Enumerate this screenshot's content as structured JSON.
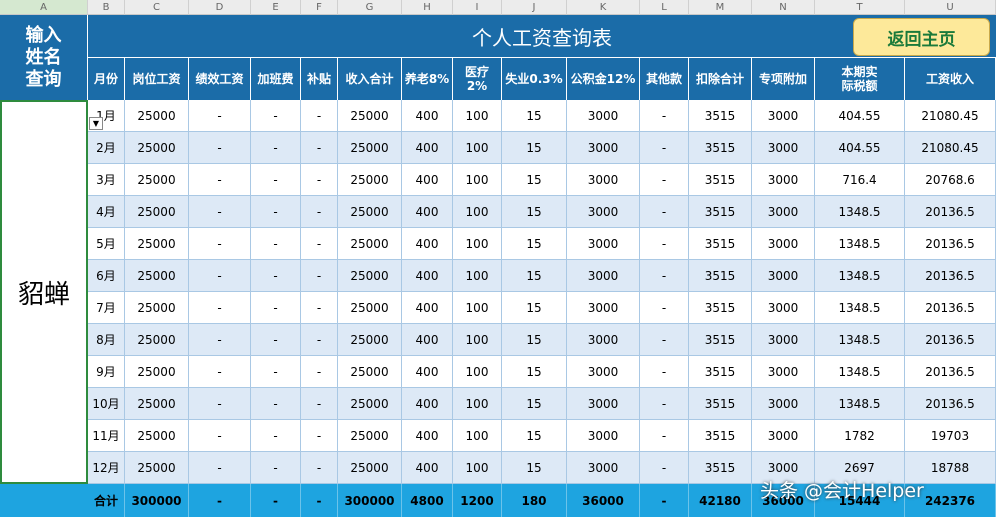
{
  "column_letters": [
    "A",
    "B",
    "C",
    "D",
    "E",
    "F",
    "G",
    "H",
    "I",
    "J",
    "K",
    "L",
    "M",
    "N",
    "T",
    "U"
  ],
  "name_label": [
    "输入",
    "姓名",
    "查询"
  ],
  "name": "貂蝉",
  "title": "个人工资查询表",
  "button": "返回主页",
  "table": {
    "headers": [
      "月份",
      "岗位工资",
      "绩效工资",
      "加班费",
      "补贴",
      "收入合计",
      "养老8%",
      "医疗2%",
      "失业0.3%",
      "公积金12%",
      "其他款",
      "扣除合计",
      "专项附加",
      "本期实际税额",
      "工资收入"
    ],
    "rows": [
      [
        "1月",
        "25000",
        "-",
        "-",
        "-",
        "25000",
        "400",
        "100",
        "15",
        "3000",
        "-",
        "3515",
        "3000",
        "404.55",
        "21080.45"
      ],
      [
        "2月",
        "25000",
        "-",
        "-",
        "-",
        "25000",
        "400",
        "100",
        "15",
        "3000",
        "-",
        "3515",
        "3000",
        "404.55",
        "21080.45"
      ],
      [
        "3月",
        "25000",
        "-",
        "-",
        "-",
        "25000",
        "400",
        "100",
        "15",
        "3000",
        "-",
        "3515",
        "3000",
        "716.4",
        "20768.6"
      ],
      [
        "4月",
        "25000",
        "-",
        "-",
        "-",
        "25000",
        "400",
        "100",
        "15",
        "3000",
        "-",
        "3515",
        "3000",
        "1348.5",
        "20136.5"
      ],
      [
        "5月",
        "25000",
        "-",
        "-",
        "-",
        "25000",
        "400",
        "100",
        "15",
        "3000",
        "-",
        "3515",
        "3000",
        "1348.5",
        "20136.5"
      ],
      [
        "6月",
        "25000",
        "-",
        "-",
        "-",
        "25000",
        "400",
        "100",
        "15",
        "3000",
        "-",
        "3515",
        "3000",
        "1348.5",
        "20136.5"
      ],
      [
        "7月",
        "25000",
        "-",
        "-",
        "-",
        "25000",
        "400",
        "100",
        "15",
        "3000",
        "-",
        "3515",
        "3000",
        "1348.5",
        "20136.5"
      ],
      [
        "8月",
        "25000",
        "-",
        "-",
        "-",
        "25000",
        "400",
        "100",
        "15",
        "3000",
        "-",
        "3515",
        "3000",
        "1348.5",
        "20136.5"
      ],
      [
        "9月",
        "25000",
        "-",
        "-",
        "-",
        "25000",
        "400",
        "100",
        "15",
        "3000",
        "-",
        "3515",
        "3000",
        "1348.5",
        "20136.5"
      ],
      [
        "10月",
        "25000",
        "-",
        "-",
        "-",
        "25000",
        "400",
        "100",
        "15",
        "3000",
        "-",
        "3515",
        "3000",
        "1348.5",
        "20136.5"
      ],
      [
        "11月",
        "25000",
        "-",
        "-",
        "-",
        "25000",
        "400",
        "100",
        "15",
        "3000",
        "-",
        "3515",
        "3000",
        "1782",
        "19703"
      ],
      [
        "12月",
        "25000",
        "-",
        "-",
        "-",
        "25000",
        "400",
        "100",
        "15",
        "3000",
        "-",
        "3515",
        "3000",
        "2697",
        "18788"
      ]
    ],
    "total": [
      "合计",
      "300000",
      "-",
      "-",
      "-",
      "300000",
      "4800",
      "1200",
      "180",
      "36000",
      "-",
      "42180",
      "36000",
      "15444",
      "242376"
    ]
  },
  "watermark": "头条 @会计Helper"
}
